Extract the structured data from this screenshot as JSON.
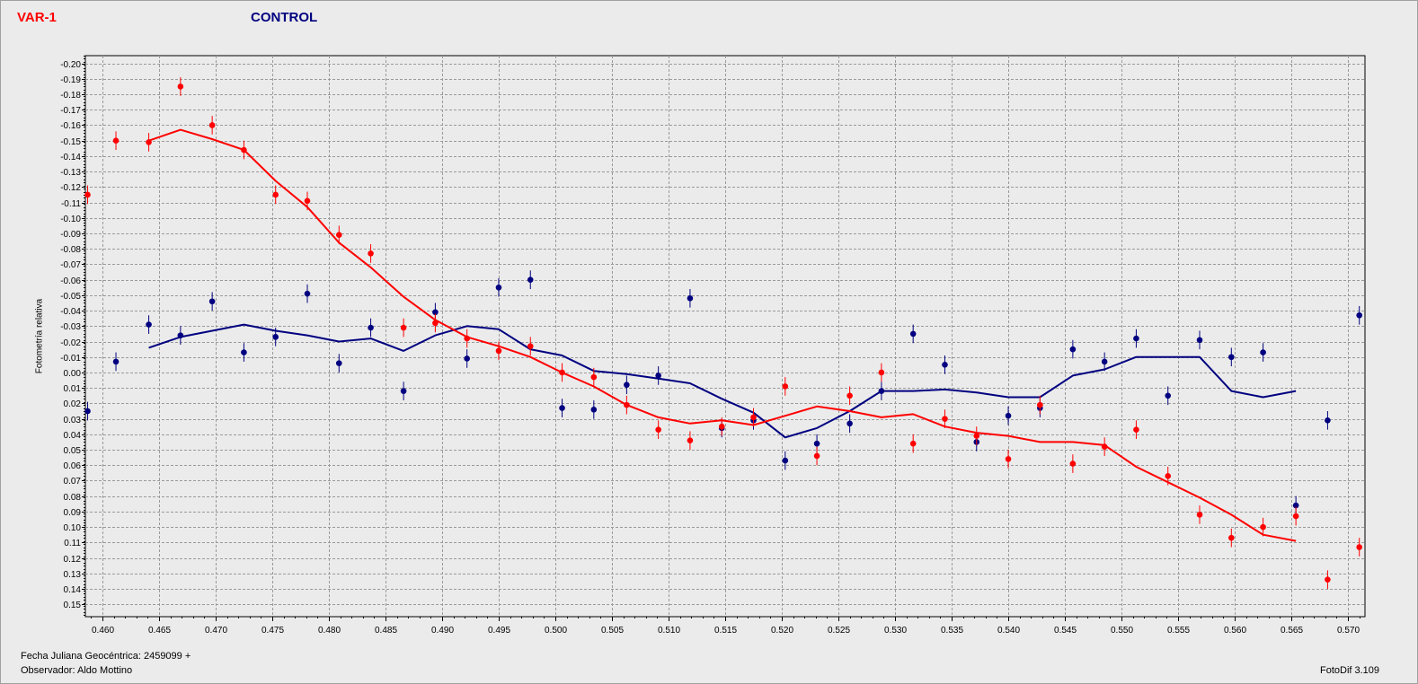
{
  "legend": {
    "var_label": "VAR-1",
    "control_label": "CONTROL"
  },
  "footer": {
    "jd_label": "Fecha Juliana Geocéntrica: 2459099 +",
    "observer_label": "Observador: Aldo Mottino",
    "software_label": "FotoDif 3.109"
  },
  "colors": {
    "var": "#ff0000",
    "control": "#000080",
    "grid": "#9a9a9a",
    "background": "#ebebeb"
  },
  "chart_data": {
    "type": "scatter",
    "xlabel": "",
    "ylabel": "Fotometría relativa",
    "xlim": [
      0.4585,
      0.5715
    ],
    "ylim": [
      -0.205,
      0.158
    ],
    "y_inverted": true,
    "grid": true,
    "x_ticks": [
      "0.460",
      "0.465",
      "0.470",
      "0.475",
      "0.480",
      "0.485",
      "0.490",
      "0.495",
      "0.500",
      "0.505",
      "0.510",
      "0.515",
      "0.520",
      "0.525",
      "0.530",
      "0.535",
      "0.540",
      "0.545",
      "0.550",
      "0.555",
      "0.560",
      "0.565",
      "0.570"
    ],
    "y_ticks": [
      "-0.20",
      "-0.19",
      "-0.18",
      "-0.17",
      "-0.16",
      "-0.15",
      "-0.14",
      "-0.13",
      "-0.12",
      "-0.11",
      "-0.10",
      "-0.09",
      "-0.08",
      "-0.07",
      "-0.06",
      "-0.05",
      "-0.04",
      "-0.03",
      "-0.02",
      "-0.01",
      "0.00",
      "0.01",
      "0.02",
      "0.03",
      "0.04",
      "0.05",
      "0.06",
      "0.07",
      "0.08",
      "0.09",
      "0.10",
      "0.11",
      "0.12",
      "0.13",
      "0.14",
      "0.15"
    ],
    "error_bar": 0.006,
    "series": [
      {
        "name": "VAR-1",
        "points": [
          [
            0.4587,
            -0.115
          ],
          [
            0.4612,
            -0.15
          ],
          [
            0.4641,
            -0.149
          ],
          [
            0.4669,
            -0.185
          ],
          [
            0.4697,
            -0.16
          ],
          [
            0.4725,
            -0.144
          ],
          [
            0.4753,
            -0.115
          ],
          [
            0.4781,
            -0.111
          ],
          [
            0.4809,
            -0.089
          ],
          [
            0.4837,
            -0.077
          ],
          [
            0.4866,
            -0.029
          ],
          [
            0.4894,
            -0.032
          ],
          [
            0.4922,
            -0.022
          ],
          [
            0.495,
            -0.014
          ],
          [
            0.4978,
            -0.017
          ],
          [
            0.5006,
            0.0
          ],
          [
            0.5034,
            0.003
          ],
          [
            0.5063,
            0.021
          ],
          [
            0.5091,
            0.037
          ],
          [
            0.5119,
            0.044
          ],
          [
            0.5147,
            0.035
          ],
          [
            0.5175,
            0.029
          ],
          [
            0.5203,
            0.009
          ],
          [
            0.5231,
            0.054
          ],
          [
            0.526,
            0.015
          ],
          [
            0.5288,
            0.0
          ],
          [
            0.5316,
            0.046
          ],
          [
            0.5344,
            0.03
          ],
          [
            0.5372,
            0.041
          ],
          [
            0.54,
            0.056
          ],
          [
            0.5428,
            0.021
          ],
          [
            0.5457,
            0.059
          ],
          [
            0.5485,
            0.048
          ],
          [
            0.5513,
            0.037
          ],
          [
            0.5541,
            0.067
          ],
          [
            0.5569,
            0.092
          ],
          [
            0.5597,
            0.107
          ],
          [
            0.5625,
            0.1
          ],
          [
            0.5654,
            0.093
          ],
          [
            0.5682,
            0.134
          ],
          [
            0.571,
            0.113
          ]
        ],
        "smooth": [
          [
            0.4641,
            -0.15
          ],
          [
            0.4669,
            -0.157
          ],
          [
            0.4697,
            -0.151
          ],
          [
            0.4725,
            -0.144
          ],
          [
            0.4753,
            -0.124
          ],
          [
            0.4781,
            -0.107
          ],
          [
            0.4809,
            -0.084
          ],
          [
            0.4837,
            -0.068
          ],
          [
            0.4866,
            -0.049
          ],
          [
            0.4894,
            -0.034
          ],
          [
            0.4922,
            -0.023
          ],
          [
            0.495,
            -0.017
          ],
          [
            0.4978,
            -0.01
          ],
          [
            0.5006,
            0.0
          ],
          [
            0.5034,
            0.009
          ],
          [
            0.5063,
            0.021
          ],
          [
            0.5091,
            0.029
          ],
          [
            0.5119,
            0.033
          ],
          [
            0.5147,
            0.031
          ],
          [
            0.5175,
            0.034
          ],
          [
            0.5203,
            0.028
          ],
          [
            0.5231,
            0.022
          ],
          [
            0.526,
            0.025
          ],
          [
            0.5288,
            0.029
          ],
          [
            0.5316,
            0.027
          ],
          [
            0.5344,
            0.035
          ],
          [
            0.5372,
            0.039
          ],
          [
            0.54,
            0.041
          ],
          [
            0.5428,
            0.045
          ],
          [
            0.5457,
            0.045
          ],
          [
            0.5485,
            0.047
          ],
          [
            0.5513,
            0.061
          ],
          [
            0.5541,
            0.071
          ],
          [
            0.5569,
            0.081
          ],
          [
            0.5597,
            0.092
          ],
          [
            0.5625,
            0.105
          ],
          [
            0.5654,
            0.109
          ]
        ]
      },
      {
        "name": "CONTROL",
        "points": [
          [
            0.4587,
            0.025
          ],
          [
            0.4612,
            -0.007
          ],
          [
            0.4641,
            -0.031
          ],
          [
            0.4669,
            -0.024
          ],
          [
            0.4697,
            -0.046
          ],
          [
            0.4725,
            -0.013
          ],
          [
            0.4753,
            -0.023
          ],
          [
            0.4781,
            -0.051
          ],
          [
            0.4809,
            -0.006
          ],
          [
            0.4837,
            -0.029
          ],
          [
            0.4866,
            0.012
          ],
          [
            0.4894,
            -0.039
          ],
          [
            0.4922,
            -0.009
          ],
          [
            0.495,
            -0.055
          ],
          [
            0.4978,
            -0.06
          ],
          [
            0.5006,
            0.023
          ],
          [
            0.5034,
            0.024
          ],
          [
            0.5063,
            0.008
          ],
          [
            0.5091,
            0.002
          ],
          [
            0.5119,
            -0.048
          ],
          [
            0.5147,
            0.036
          ],
          [
            0.5175,
            0.031
          ],
          [
            0.5203,
            0.057
          ],
          [
            0.5231,
            0.046
          ],
          [
            0.526,
            0.033
          ],
          [
            0.5288,
            0.012
          ],
          [
            0.5316,
            -0.025
          ],
          [
            0.5344,
            -0.005
          ],
          [
            0.5372,
            0.045
          ],
          [
            0.54,
            0.028
          ],
          [
            0.5428,
            0.023
          ],
          [
            0.5457,
            -0.015
          ],
          [
            0.5485,
            -0.007
          ],
          [
            0.5513,
            -0.022
          ],
          [
            0.5541,
            0.015
          ],
          [
            0.5569,
            -0.021
          ],
          [
            0.5597,
            -0.01
          ],
          [
            0.5625,
            -0.013
          ],
          [
            0.5654,
            0.086
          ],
          [
            0.5682,
            0.031
          ],
          [
            0.571,
            -0.037
          ]
        ],
        "smooth": [
          [
            0.4641,
            -0.016
          ],
          [
            0.4669,
            -0.023
          ],
          [
            0.4697,
            -0.027
          ],
          [
            0.4725,
            -0.031
          ],
          [
            0.4753,
            -0.027
          ],
          [
            0.4781,
            -0.024
          ],
          [
            0.4809,
            -0.02
          ],
          [
            0.4837,
            -0.022
          ],
          [
            0.4866,
            -0.014
          ],
          [
            0.4894,
            -0.024
          ],
          [
            0.4922,
            -0.03
          ],
          [
            0.495,
            -0.028
          ],
          [
            0.4978,
            -0.015
          ],
          [
            0.5006,
            -0.011
          ],
          [
            0.5034,
            -0.001
          ],
          [
            0.5063,
            0.001
          ],
          [
            0.5091,
            0.004
          ],
          [
            0.5119,
            0.007
          ],
          [
            0.5147,
            0.017
          ],
          [
            0.5175,
            0.026
          ],
          [
            0.5203,
            0.042
          ],
          [
            0.5231,
            0.036
          ],
          [
            0.526,
            0.025
          ],
          [
            0.5288,
            0.012
          ],
          [
            0.5316,
            0.012
          ],
          [
            0.5344,
            0.011
          ],
          [
            0.5372,
            0.013
          ],
          [
            0.54,
            0.016
          ],
          [
            0.5428,
            0.016
          ],
          [
            0.5457,
            0.002
          ],
          [
            0.5485,
            -0.002
          ],
          [
            0.5513,
            -0.01
          ],
          [
            0.5541,
            -0.01
          ],
          [
            0.5569,
            -0.01
          ],
          [
            0.5597,
            0.012
          ],
          [
            0.5625,
            0.016
          ],
          [
            0.5654,
            0.012
          ]
        ]
      }
    ]
  }
}
